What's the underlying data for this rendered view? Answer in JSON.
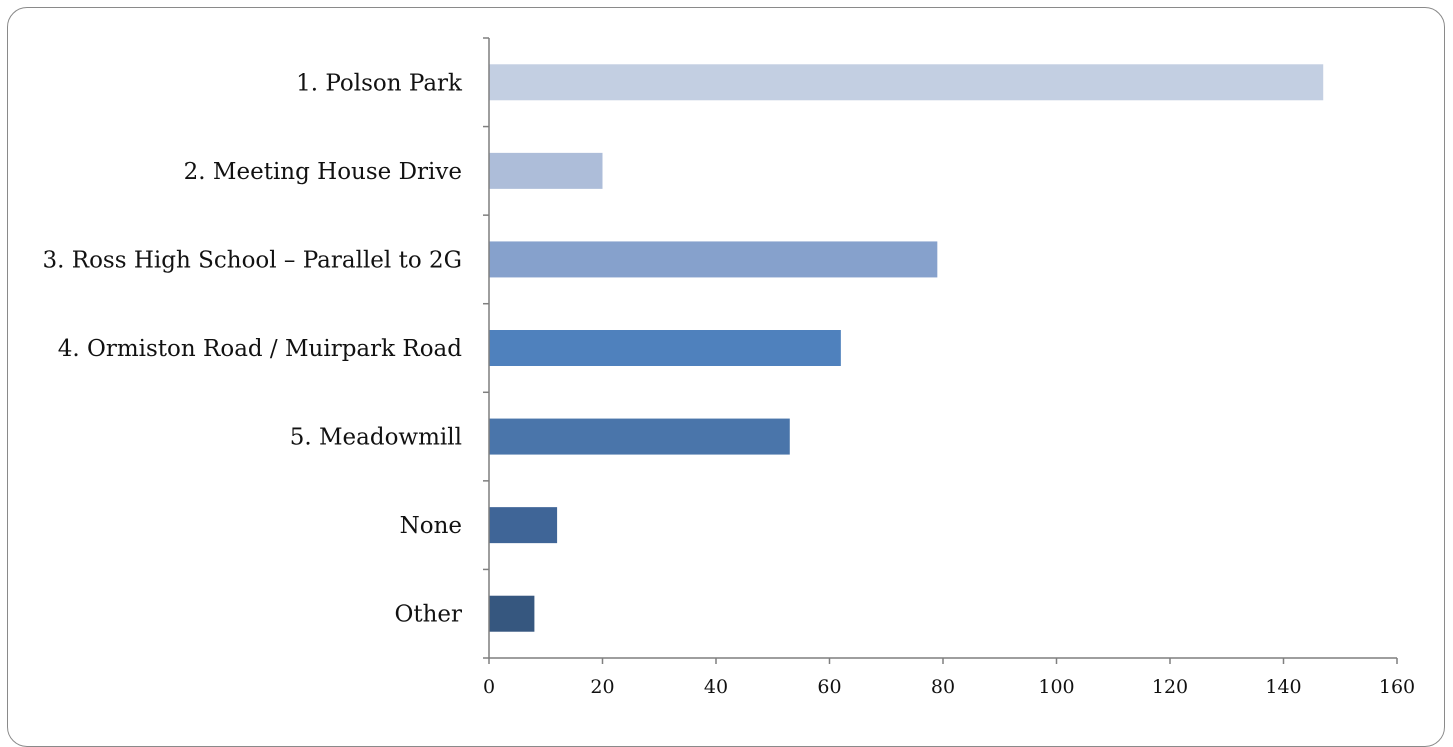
{
  "chart_data": {
    "type": "bar",
    "orientation": "horizontal",
    "title": "",
    "xlabel": "",
    "ylabel": "",
    "categories": [
      "1. Polson Park",
      "2. Meeting House Drive",
      "3. Ross High School – Parallel to 2G",
      "4. Ormiston Road / Muirpark Road",
      "5. Meadowmill",
      "None",
      "Other"
    ],
    "values": [
      147,
      20,
      79,
      62,
      53,
      12,
      8
    ],
    "colors": [
      "#c3cfe2",
      "#adbdd9",
      "#86a1cc",
      "#4f81bd",
      "#4a75aa",
      "#3f6597",
      "#36577f"
    ],
    "xlim": [
      0,
      160
    ],
    "xticks": [
      "0",
      "20",
      "40",
      "60",
      "80",
      "100",
      "120",
      "140",
      "160"
    ],
    "grid": false,
    "legend": "none"
  }
}
